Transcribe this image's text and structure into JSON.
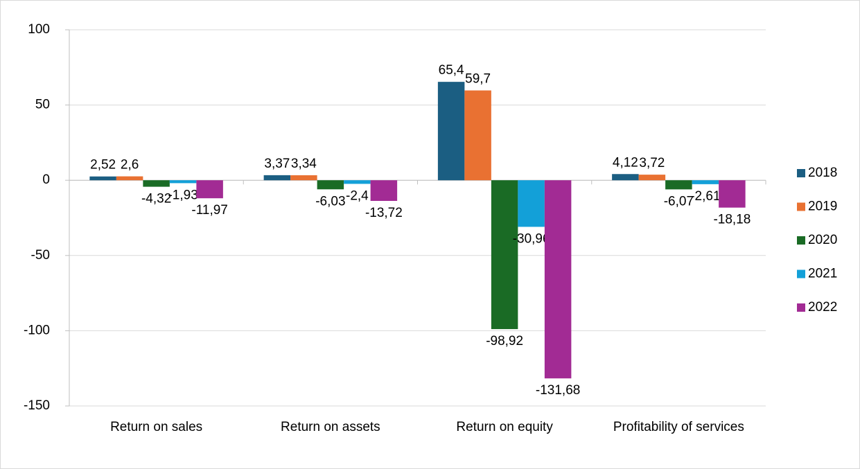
{
  "chart_data": {
    "type": "bar",
    "categories": [
      "Return on sales",
      "Return on assets",
      "Return on equity",
      "Profitability of services"
    ],
    "series": [
      {
        "name": "2018",
        "color": "#1b5e82",
        "values": [
          2.52,
          3.37,
          65.4,
          4.12
        ],
        "value_labels": [
          "2,52",
          "3,37",
          "65,4",
          "4,12"
        ]
      },
      {
        "name": "2019",
        "color": "#e97132",
        "values": [
          2.6,
          3.34,
          59.7,
          3.72
        ],
        "value_labels": [
          "2,6",
          "3,34",
          "59,7",
          "3,72"
        ]
      },
      {
        "name": "2020",
        "color": "#1a6b25",
        "values": [
          -4.32,
          -6.03,
          -98.92,
          -6.07
        ],
        "value_labels": [
          "-4,32",
          "-6,03",
          "-98,92",
          "-6,07"
        ]
      },
      {
        "name": "2021",
        "color": "#13a0d8",
        "values": [
          -1.93,
          -2.4,
          -30.96,
          -2.61
        ],
        "value_labels": [
          "-1,93",
          "-2,4",
          "-30,96",
          "-2,61"
        ]
      },
      {
        "name": "2022",
        "color": "#a22b94",
        "values": [
          -11.97,
          -13.72,
          -131.68,
          -18.18
        ],
        "value_labels": [
          "-11,97",
          "-13,72",
          "-131,68",
          "-18,18"
        ]
      }
    ],
    "ylim": [
      -150,
      100
    ],
    "yticks": [
      -150,
      -100,
      -50,
      0,
      50,
      100
    ],
    "grid": true,
    "legend": "right"
  }
}
